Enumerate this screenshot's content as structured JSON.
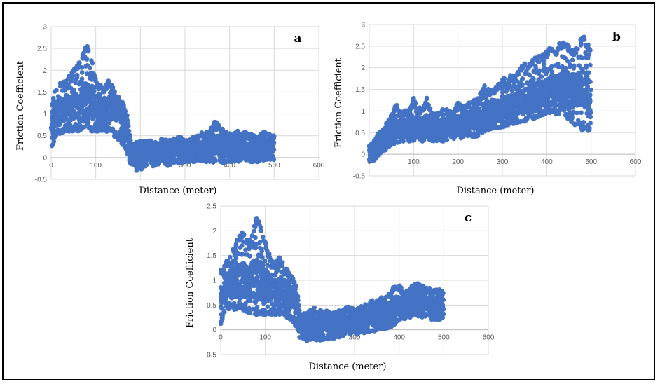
{
  "colors": {
    "marker": "#4472c4",
    "grid": "#d9d9d9",
    "frame": "#000000"
  },
  "chart_data": [
    {
      "panel": "a",
      "type": "scatter",
      "xlabel": "Distance (meter)",
      "ylabel": "Friction Coefficient",
      "xlim": [
        0,
        600
      ],
      "ylim": [
        -0.5,
        3
      ],
      "xticks": [
        "0",
        "100",
        "200",
        "300",
        "400",
        "500",
        "600"
      ],
      "yticks": [
        "-0.5",
        "0",
        "0.5",
        "1",
        "1.5",
        "2",
        "2.5",
        "3"
      ],
      "grid": true,
      "series": [
        {
          "x": [
            0,
            10,
            20,
            30,
            40,
            50,
            60,
            70,
            80,
            90,
            100,
            110,
            120,
            130,
            140,
            150,
            160,
            170,
            180,
            190,
            200,
            210,
            220,
            230,
            240,
            250,
            260,
            270,
            280,
            290,
            300,
            310,
            320,
            330,
            340,
            350,
            360,
            370,
            380,
            390,
            400,
            410,
            420,
            430,
            440,
            450,
            460,
            470,
            480,
            490,
            500
          ],
          "y_center": [
            0.8,
            1.0,
            1.0,
            1.15,
            1.15,
            1.2,
            1.2,
            1.25,
            1.3,
            1.25,
            1.2,
            1.15,
            1.1,
            1.15,
            1.1,
            1.0,
            0.8,
            0.6,
            0.1,
            0.05,
            0.05,
            0.1,
            0.1,
            0.1,
            0.1,
            0.15,
            0.1,
            0.15,
            0.2,
            0.15,
            0.15,
            0.15,
            0.2,
            0.2,
            0.2,
            0.25,
            0.3,
            0.3,
            0.25,
            0.2,
            0.2,
            0.2,
            0.25,
            0.25,
            0.2,
            0.2,
            0.2,
            0.2,
            0.25,
            0.2,
            0.2
          ],
          "y_max": [
            1.3,
            1.6,
            1.7,
            1.8,
            1.9,
            2.0,
            2.2,
            2.4,
            2.6,
            2.3,
            1.8,
            1.7,
            1.6,
            1.8,
            1.6,
            1.4,
            1.3,
            1.0,
            0.3,
            0.35,
            0.4,
            0.4,
            0.4,
            0.35,
            0.35,
            0.45,
            0.4,
            0.4,
            0.5,
            0.5,
            0.4,
            0.4,
            0.5,
            0.5,
            0.6,
            0.6,
            0.7,
            0.9,
            0.7,
            0.6,
            0.55,
            0.6,
            0.65,
            0.65,
            0.55,
            0.55,
            0.5,
            0.55,
            0.6,
            0.55,
            0.5
          ],
          "y_min": [
            0.1,
            0.5,
            0.5,
            0.6,
            0.6,
            0.6,
            0.6,
            0.6,
            0.7,
            0.6,
            0.6,
            0.6,
            0.6,
            0.6,
            0.5,
            0.4,
            0.3,
            0.1,
            -0.2,
            -0.3,
            -0.3,
            -0.2,
            -0.2,
            -0.2,
            -0.15,
            -0.15,
            -0.2,
            -0.15,
            -0.1,
            -0.15,
            -0.1,
            -0.1,
            -0.1,
            -0.1,
            -0.1,
            -0.1,
            -0.1,
            -0.15,
            -0.1,
            -0.15,
            -0.1,
            -0.1,
            -0.1,
            -0.05,
            -0.1,
            -0.1,
            -0.1,
            -0.1,
            -0.05,
            -0.05,
            -0.05
          ]
        }
      ]
    },
    {
      "panel": "b",
      "type": "scatter",
      "xlabel": "Distance (meter)",
      "ylabel": "Friction Coefficient",
      "xlim": [
        0,
        600
      ],
      "ylim": [
        -0.5,
        3
      ],
      "xticks": [
        "0",
        "100",
        "200",
        "300",
        "400",
        "500",
        "600"
      ],
      "yticks": [
        "-0.5",
        "0",
        "0.5",
        "1",
        "1.5",
        "2",
        "2.5",
        "3"
      ],
      "grid": true,
      "series": [
        {
          "x": [
            0,
            10,
            20,
            30,
            40,
            50,
            60,
            70,
            80,
            90,
            100,
            110,
            120,
            130,
            140,
            150,
            160,
            170,
            180,
            190,
            200,
            210,
            220,
            230,
            240,
            250,
            260,
            270,
            280,
            290,
            300,
            310,
            320,
            330,
            340,
            350,
            360,
            370,
            380,
            390,
            400,
            410,
            420,
            430,
            440,
            450,
            460,
            470,
            480,
            490,
            500
          ],
          "y_center": [
            0.05,
            0.1,
            0.2,
            0.3,
            0.45,
            0.5,
            0.55,
            0.6,
            0.6,
            0.6,
            0.65,
            0.65,
            0.65,
            0.7,
            0.6,
            0.6,
            0.6,
            0.65,
            0.65,
            0.65,
            0.7,
            0.7,
            0.75,
            0.75,
            0.8,
            0.85,
            0.9,
            0.95,
            1.0,
            1.0,
            1.05,
            1.1,
            1.1,
            1.15,
            1.2,
            1.2,
            1.25,
            1.3,
            1.35,
            1.35,
            1.4,
            1.4,
            1.45,
            1.5,
            1.5,
            1.45,
            1.5,
            1.5,
            1.5,
            1.5,
            1.45
          ],
          "y_max": [
            0.2,
            0.3,
            0.5,
            0.55,
            0.75,
            0.9,
            1.2,
            1.0,
            1.05,
            1.0,
            1.3,
            1.1,
            1.05,
            1.35,
            1.0,
            0.95,
            1.0,
            1.1,
            1.0,
            1.0,
            1.2,
            1.1,
            1.2,
            1.2,
            1.3,
            1.4,
            1.6,
            1.5,
            1.55,
            1.6,
            1.8,
            1.7,
            1.9,
            1.8,
            2.0,
            2.1,
            2.1,
            2.2,
            2.3,
            2.3,
            2.4,
            2.5,
            2.4,
            2.6,
            2.6,
            2.5,
            2.4,
            2.5,
            2.8,
            2.6,
            2.4
          ],
          "y_min": [
            -0.2,
            -0.15,
            -0.05,
            0.05,
            0.1,
            0.2,
            0.2,
            0.3,
            0.3,
            0.3,
            0.3,
            0.35,
            0.3,
            0.3,
            0.3,
            0.3,
            0.3,
            0.3,
            0.35,
            0.35,
            0.4,
            0.35,
            0.4,
            0.4,
            0.4,
            0.45,
            0.5,
            0.55,
            0.6,
            0.6,
            0.6,
            0.65,
            0.7,
            0.7,
            0.7,
            0.75,
            0.8,
            0.8,
            0.85,
            0.9,
            0.9,
            0.9,
            0.9,
            0.95,
            0.9,
            0.8,
            0.7,
            0.6,
            0.55,
            0.5,
            0.6
          ]
        }
      ]
    },
    {
      "panel": "c",
      "type": "scatter",
      "xlabel": "Distance (meter)",
      "ylabel": "Friction Coefficient",
      "xlim": [
        0,
        600
      ],
      "ylim": [
        -0.5,
        2.5
      ],
      "xticks": [
        "0",
        "100",
        "200",
        "300",
        "400",
        "500",
        "600"
      ],
      "yticks": [
        "-0.5",
        "0",
        "0.5",
        "1",
        "1.5",
        "2",
        "2.5"
      ],
      "grid": true,
      "series": [
        {
          "x": [
            0,
            10,
            20,
            30,
            40,
            50,
            60,
            70,
            80,
            90,
            100,
            110,
            120,
            130,
            140,
            150,
            160,
            170,
            180,
            190,
            200,
            210,
            220,
            230,
            240,
            250,
            260,
            270,
            280,
            290,
            300,
            310,
            320,
            330,
            340,
            350,
            360,
            370,
            380,
            390,
            400,
            410,
            420,
            430,
            440,
            450,
            460,
            470,
            480,
            490,
            500
          ],
          "y_center": [
            0.7,
            0.9,
            0.95,
            1.0,
            1.05,
            1.0,
            1.0,
            1.0,
            1.05,
            1.0,
            0.9,
            0.85,
            0.8,
            0.8,
            0.8,
            0.7,
            0.7,
            0.6,
            0.05,
            0.05,
            0.1,
            0.1,
            0.1,
            0.15,
            0.1,
            0.1,
            0.1,
            0.15,
            0.15,
            0.15,
            0.15,
            0.2,
            0.2,
            0.25,
            0.3,
            0.3,
            0.3,
            0.35,
            0.4,
            0.45,
            0.5,
            0.5,
            0.55,
            0.55,
            0.55,
            0.55,
            0.55,
            0.5,
            0.5,
            0.5,
            0.5
          ],
          "y_max": [
            1.2,
            1.4,
            1.5,
            1.7,
            1.9,
            2.0,
            1.8,
            1.9,
            2.3,
            2.1,
            1.8,
            1.5,
            1.3,
            1.5,
            1.4,
            1.2,
            1.1,
            0.9,
            0.3,
            0.35,
            0.4,
            0.45,
            0.4,
            0.4,
            0.4,
            0.35,
            0.4,
            0.4,
            0.45,
            0.5,
            0.4,
            0.45,
            0.5,
            0.55,
            0.6,
            0.6,
            0.65,
            0.7,
            0.75,
            0.95,
            0.9,
            0.8,
            0.85,
            0.9,
            0.95,
            0.9,
            0.85,
            0.85,
            0.8,
            0.85,
            0.75
          ],
          "y_min": [
            0.1,
            0.4,
            0.4,
            0.4,
            0.4,
            0.4,
            0.35,
            0.3,
            0.3,
            0.3,
            0.3,
            0.3,
            0.3,
            0.3,
            0.3,
            0.2,
            0.15,
            0.05,
            -0.25,
            -0.25,
            -0.2,
            -0.2,
            -0.25,
            -0.2,
            -0.2,
            -0.2,
            -0.15,
            -0.15,
            -0.1,
            -0.1,
            -0.1,
            -0.1,
            -0.1,
            -0.05,
            -0.05,
            0.0,
            0.0,
            0.0,
            0.05,
            0.1,
            0.2,
            0.2,
            0.25,
            0.25,
            0.25,
            0.25,
            0.25,
            0.2,
            0.2,
            0.2,
            0.25
          ]
        }
      ]
    }
  ]
}
